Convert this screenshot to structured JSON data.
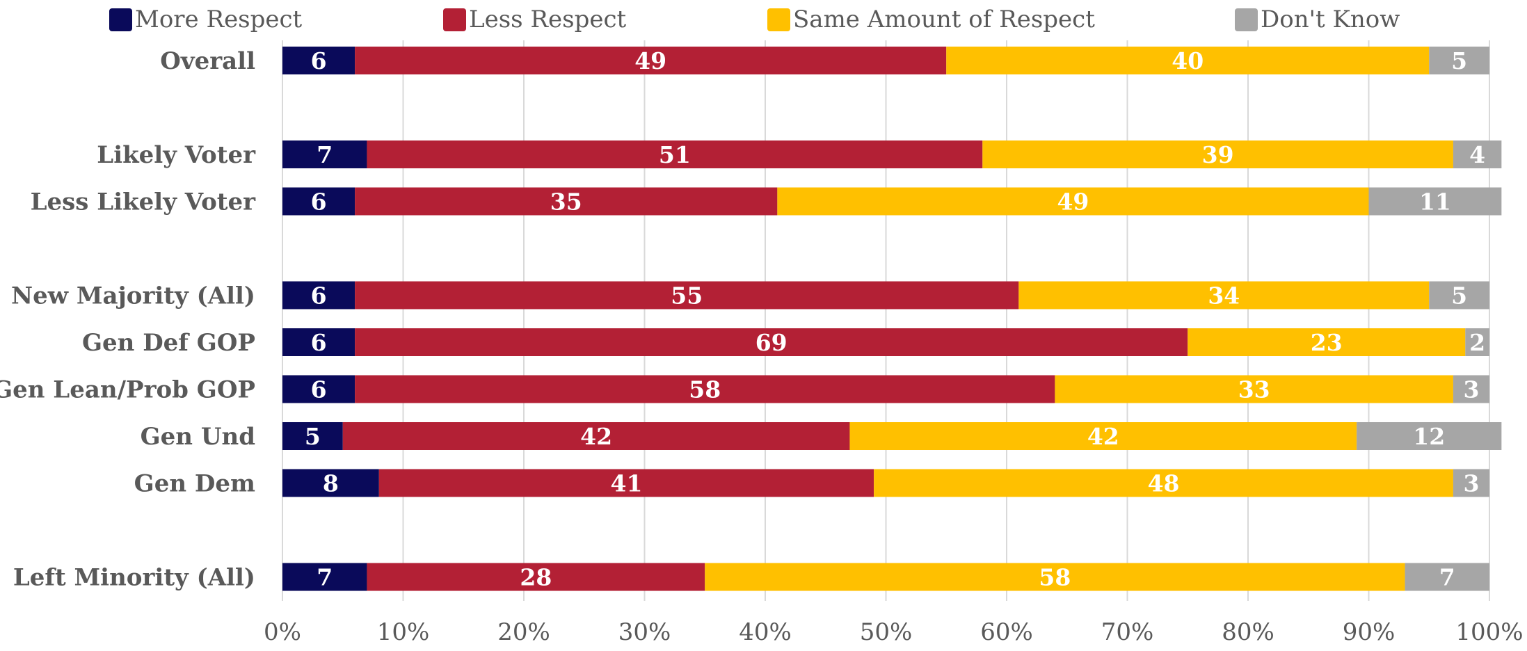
{
  "chart_data": {
    "type": "bar",
    "orientation": "horizontal",
    "stacked": true,
    "percent": true,
    "title": "",
    "xlabel": "",
    "ylabel": "",
    "xlim": [
      0,
      100
    ],
    "x_ticks": [
      "0%",
      "10%",
      "20%",
      "30%",
      "40%",
      "50%",
      "60%",
      "70%",
      "80%",
      "90%",
      "100%"
    ],
    "grid": "vertical",
    "legend_position": "top",
    "categories": [
      "Overall",
      "Likely Voter",
      "Less Likely Voter",
      "New Majority (All)",
      "Gen Def GOP",
      "Gen Lean/Prob GOP",
      "Gen Und",
      "Gen Dem",
      "Left Minority (All)"
    ],
    "category_slots": [
      0,
      2,
      3,
      5,
      6,
      7,
      8,
      9,
      11
    ],
    "series": [
      {
        "name": "More Respect",
        "color": "#0a0a5a",
        "values": [
          6,
          7,
          6,
          6,
          6,
          6,
          5,
          8,
          7
        ]
      },
      {
        "name": "Less Respect",
        "color": "#b32035",
        "values": [
          49,
          51,
          35,
          55,
          69,
          58,
          42,
          41,
          28
        ]
      },
      {
        "name": "Same Amount of Respect",
        "color": "#ffc000",
        "values": [
          40,
          39,
          49,
          34,
          23,
          33,
          42,
          48,
          58
        ]
      },
      {
        "name": "Don't Know",
        "color": "#a6a6a6",
        "values": [
          5,
          4,
          11,
          5,
          2,
          3,
          12,
          3,
          7
        ]
      }
    ]
  }
}
